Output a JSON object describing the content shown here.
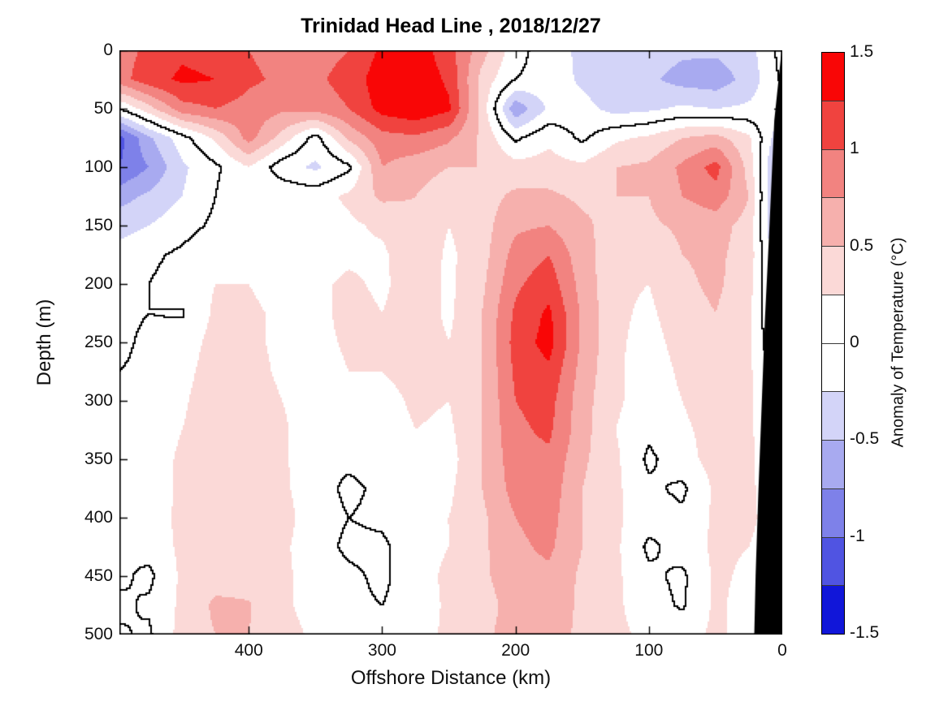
{
  "title": "Trinidad Head Line , 2018/12/27",
  "chart_data": {
    "type": "filled_contour",
    "title": "Trinidad Head Line , 2018/12/27",
    "xlabel": "Offshore Distance (km)",
    "ylabel": "Depth (m)",
    "x_axis": {
      "min": 0,
      "max": 497,
      "reversed": true,
      "ticks": [
        400,
        300,
        200,
        100,
        0
      ]
    },
    "y_axis": {
      "min": 0,
      "max": 500,
      "reversed": true,
      "ticks": [
        0,
        50,
        100,
        150,
        200,
        250,
        300,
        350,
        400,
        450,
        500
      ]
    },
    "colorbar": {
      "label": "Anomaly of Temperature (°C)",
      "min": -1.5,
      "max": 1.5,
      "step": 0.25,
      "ticks": [
        1.5,
        1,
        0.5,
        0,
        -0.5,
        -1,
        -1.5
      ],
      "colors": [
        "#1116D9",
        "#5054E2",
        "#7E81E9",
        "#A8AAF0",
        "#D3D4F8",
        "#FFFFFF",
        "#FFFFFF",
        "#FBD9D7",
        "#F6B0AD",
        "#F28380",
        "#F0433F",
        "#F90606"
      ]
    },
    "contour_line_level": 0,
    "contour_line_color": "#000000",
    "grid": {
      "x_km": [
        497,
        475,
        450,
        425,
        400,
        375,
        350,
        325,
        300,
        275,
        250,
        225,
        200,
        175,
        150,
        125,
        100,
        75,
        50,
        25,
        0
      ],
      "depth_m": [
        0,
        25,
        50,
        75,
        100,
        125,
        150,
        175,
        200,
        225,
        250,
        275,
        300,
        325,
        350,
        375,
        400,
        425,
        450,
        475,
        500
      ],
      "anomaly_degC": [
        [
          0.9,
          1.05,
          1.2,
          1.15,
          1.0,
          0.9,
          0.9,
          1.0,
          1.3,
          1.4,
          1.1,
          0.6,
          0.1,
          -0.15,
          -0.3,
          -0.4,
          -0.35,
          -0.45,
          -0.45,
          -0.35,
          0.1
        ],
        [
          0.9,
          1.15,
          1.3,
          1.25,
          1.05,
          0.95,
          0.95,
          1.1,
          1.4,
          1.45,
          1.2,
          0.4,
          0.0,
          -0.1,
          -0.3,
          -0.5,
          -0.45,
          -0.6,
          -0.65,
          -0.4,
          0.05
        ],
        [
          0.0,
          0.4,
          0.9,
          1.0,
          0.9,
          0.8,
          0.85,
          1.0,
          1.35,
          1.45,
          1.3,
          0.4,
          -0.7,
          -0.2,
          -0.15,
          -0.35,
          -0.3,
          -0.2,
          -0.25,
          -0.2,
          -0.1
        ],
        [
          -1.1,
          -0.55,
          -0.1,
          0.3,
          0.85,
          0.4,
          -0.1,
          0.55,
          0.9,
          0.95,
          0.8,
          0.45,
          -0.05,
          0.2,
          -0.05,
          0.2,
          0.3,
          0.5,
          0.6,
          0.3,
          -0.5
        ],
        [
          -1.0,
          -0.75,
          -0.3,
          -0.05,
          0.25,
          -0.15,
          -0.3,
          -0.05,
          0.75,
          0.6,
          0.5,
          0.5,
          0.35,
          0.35,
          0.3,
          0.5,
          0.55,
          0.8,
          1.1,
          0.4,
          -0.8
        ],
        [
          -0.6,
          -0.45,
          -0.25,
          0.0,
          0.25,
          0.2,
          0.15,
          0.3,
          0.55,
          0.5,
          0.35,
          0.4,
          0.55,
          0.55,
          0.45,
          0.5,
          0.5,
          0.75,
          0.9,
          0.5,
          -0.85
        ],
        [
          -0.35,
          -0.25,
          -0.1,
          0.05,
          0.2,
          0.15,
          0.1,
          0.2,
          0.3,
          0.45,
          0.25,
          0.4,
          0.7,
          0.75,
          0.55,
          0.4,
          0.45,
          0.55,
          0.6,
          0.4,
          -0.8
        ],
        [
          -0.15,
          -0.05,
          0.05,
          0.2,
          0.2,
          0.15,
          0.1,
          0.2,
          0.2,
          0.45,
          0.2,
          0.4,
          0.85,
          1.0,
          0.6,
          0.35,
          0.3,
          0.5,
          0.55,
          0.4,
          -0.6
        ],
        [
          -0.1,
          0.0,
          0.1,
          0.25,
          0.25,
          0.15,
          0.2,
          0.3,
          0.2,
          0.4,
          0.2,
          0.45,
          0.95,
          1.15,
          0.65,
          0.3,
          0.25,
          0.45,
          0.55,
          0.35,
          -0.5
        ],
        [
          -0.05,
          0.0,
          -0.02,
          0.3,
          0.3,
          0.2,
          0.15,
          0.35,
          0.25,
          0.4,
          0.2,
          0.5,
          1.05,
          1.3,
          0.7,
          0.3,
          0.2,
          0.4,
          0.5,
          0.3,
          -0.45
        ],
        [
          -0.05,
          0.05,
          0.1,
          0.35,
          0.3,
          0.2,
          0.15,
          0.3,
          0.3,
          0.4,
          0.25,
          0.5,
          1.1,
          1.35,
          0.7,
          0.3,
          0.15,
          0.35,
          0.45,
          0.3,
          -0.4
        ],
        [
          0.0,
          0.05,
          0.15,
          0.4,
          0.35,
          0.2,
          0.1,
          0.25,
          0.25,
          0.35,
          0.25,
          0.5,
          1.05,
          1.2,
          0.65,
          0.3,
          0.1,
          0.3,
          0.4,
          0.3,
          -0.2
        ],
        [
          0.0,
          0.1,
          0.2,
          0.45,
          0.4,
          0.25,
          0.1,
          0.15,
          0.15,
          0.3,
          0.25,
          0.5,
          1.0,
          1.1,
          0.6,
          0.3,
          0.1,
          0.25,
          0.4,
          0.3,
          -0.1
        ],
        [
          0.05,
          0.1,
          0.25,
          0.45,
          0.4,
          0.3,
          0.05,
          0.1,
          0.1,
          0.25,
          0.2,
          0.5,
          0.95,
          1.05,
          0.6,
          0.25,
          0.05,
          0.2,
          0.35,
          0.3,
          -0.05
        ],
        [
          0.05,
          0.1,
          0.3,
          0.45,
          0.45,
          0.3,
          0.05,
          0.05,
          0.1,
          0.2,
          0.15,
          0.5,
          0.9,
          0.95,
          0.55,
          0.3,
          -0.05,
          0.15,
          0.35,
          0.3,
          0.0
        ],
        [
          0.05,
          0.1,
          0.3,
          0.45,
          0.45,
          0.3,
          0.1,
          -0.05,
          0.05,
          0.2,
          0.2,
          0.5,
          0.85,
          0.9,
          0.5,
          0.3,
          0.05,
          -0.05,
          0.3,
          0.3,
          0.05
        ],
        [
          0.05,
          0.15,
          0.3,
          0.45,
          0.45,
          0.35,
          0.1,
          0.0,
          0.05,
          0.2,
          0.25,
          0.45,
          0.75,
          0.85,
          0.5,
          0.3,
          0.1,
          0.05,
          0.3,
          0.3,
          0.1
        ],
        [
          0.0,
          0.1,
          0.3,
          0.45,
          0.4,
          0.3,
          0.1,
          -0.05,
          -0.05,
          0.15,
          0.25,
          0.45,
          0.7,
          0.8,
          0.5,
          0.3,
          -0.05,
          0.1,
          0.3,
          0.25,
          0.1
        ],
        [
          0.05,
          -0.06,
          0.3,
          0.4,
          0.4,
          0.3,
          0.15,
          0.05,
          -0.05,
          0.15,
          0.3,
          0.45,
          0.65,
          0.7,
          0.45,
          0.3,
          0.05,
          -0.05,
          0.3,
          0.2,
          0.15
        ],
        [
          -0.05,
          0.04,
          0.3,
          0.55,
          0.52,
          0.3,
          0.15,
          0.05,
          0.0,
          0.1,
          0.3,
          0.4,
          0.6,
          0.65,
          0.45,
          0.3,
          0.1,
          -0.03,
          0.3,
          0.15,
          0.15
        ],
        [
          0.03,
          -0.04,
          0.35,
          0.5,
          0.5,
          0.35,
          0.2,
          0.1,
          0.05,
          0.15,
          0.3,
          0.45,
          0.6,
          0.6,
          0.45,
          0.3,
          0.2,
          0.15,
          0.3,
          0.15,
          0.2
        ]
      ]
    },
    "seafloor_mask": {
      "color": "#000000",
      "boundary_km_depth": [
        [
          0,
          0
        ],
        [
          0.5,
          0
        ],
        [
          6,
          60
        ],
        [
          8,
          110
        ],
        [
          10,
          160
        ],
        [
          13,
          230
        ],
        [
          15,
          290
        ],
        [
          18,
          380
        ],
        [
          20,
          450
        ],
        [
          21,
          500
        ],
        [
          0,
          500
        ]
      ]
    }
  }
}
